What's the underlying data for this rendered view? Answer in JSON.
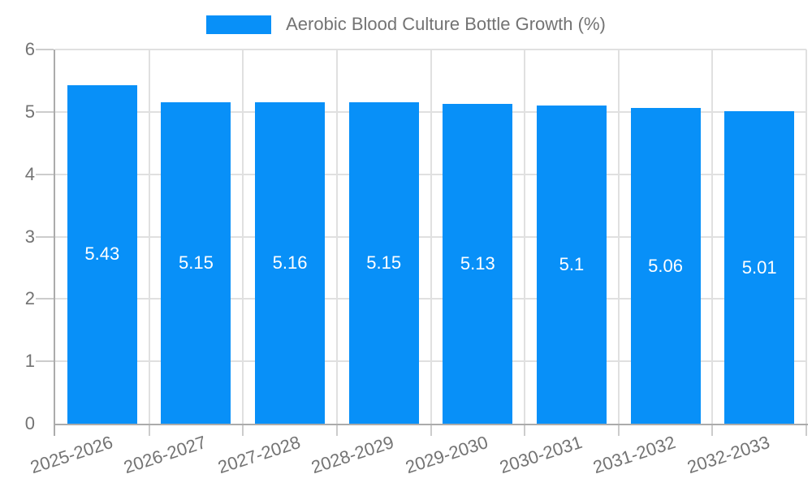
{
  "chart_data": {
    "type": "bar",
    "title": "",
    "legend_label": "Aerobic Blood Culture Bottle Growth (%)",
    "legend_position": "top",
    "categories": [
      "2025-2026",
      "2026-2027",
      "2027-2028",
      "2028-2029",
      "2029-2030",
      "2030-2031",
      "2031-2032",
      "2032-2033"
    ],
    "values": [
      5.43,
      5.15,
      5.16,
      5.15,
      5.13,
      5.1,
      5.06,
      5.01
    ],
    "value_labels": [
      "5.43",
      "5.15",
      "5.16",
      "5.15",
      "5.13",
      "5.1",
      "5.06",
      "5.01"
    ],
    "xlabel": "",
    "ylabel": "",
    "ylim": [
      0,
      6
    ],
    "yticks": [
      0,
      1,
      2,
      3,
      4,
      5,
      6
    ],
    "grid": "on",
    "colors": {
      "bar": "#0890f8",
      "value_label": "#ffffff",
      "axis_text": "#737373",
      "grid": "#e0e0e0",
      "axis_line": "#ababab",
      "tick": "#cccccc",
      "background": "#ffffff"
    }
  }
}
